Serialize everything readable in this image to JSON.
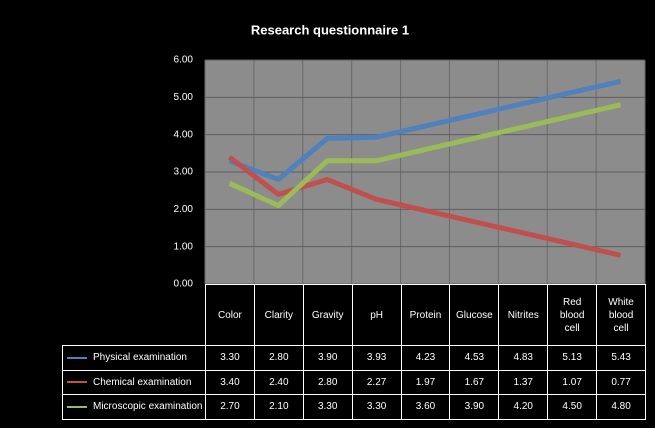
{
  "chart_data": {
    "type": "line",
    "title": "Research questionnaire 1",
    "categories": [
      "Color",
      "Clarity",
      "Gravity",
      "pH",
      "Protein",
      "Glucose",
      "Nitrites",
      "Red blood cell",
      "White blood cell"
    ],
    "series": [
      {
        "name": "Physical examination",
        "color": "#4f81bd",
        "values": [
          3.3,
          2.8,
          3.9,
          3.93,
          4.23,
          4.53,
          4.83,
          5.13,
          5.43
        ],
        "value_labels": [
          "3.30",
          "2.80",
          "3.90",
          "3.93",
          "4.23",
          "4.53",
          "4.83",
          "5.13",
          "5.43"
        ]
      },
      {
        "name": "Chemical examination",
        "color": "#c0504d",
        "values": [
          3.4,
          2.4,
          2.8,
          2.27,
          1.97,
          1.67,
          1.37,
          1.07,
          0.77
        ],
        "value_labels": [
          "3.40",
          "2.40",
          "2.80",
          "2.27",
          "1.97",
          "1.67",
          "1.37",
          "1.07",
          "0.77"
        ]
      },
      {
        "name": "Microscopic examination",
        "color": "#9bbb59",
        "values": [
          2.7,
          2.1,
          3.3,
          3.3,
          3.6,
          3.9,
          4.2,
          4.5,
          4.8
        ],
        "value_labels": [
          "2.70",
          "2.10",
          "3.30",
          "3.30",
          "3.60",
          "3.90",
          "4.20",
          "4.50",
          "4.80"
        ]
      }
    ],
    "ylim": [
      0,
      6
    ],
    "yticks": [
      {
        "value": 0,
        "label": "0.00"
      },
      {
        "value": 1,
        "label": "1.00"
      },
      {
        "value": 2,
        "label": "2.00"
      },
      {
        "value": 3,
        "label": "3.00"
      },
      {
        "value": 4,
        "label": "4.00"
      },
      {
        "value": 5,
        "label": "5.00"
      },
      {
        "value": 6,
        "label": "6.00"
      }
    ],
    "grid": true
  }
}
